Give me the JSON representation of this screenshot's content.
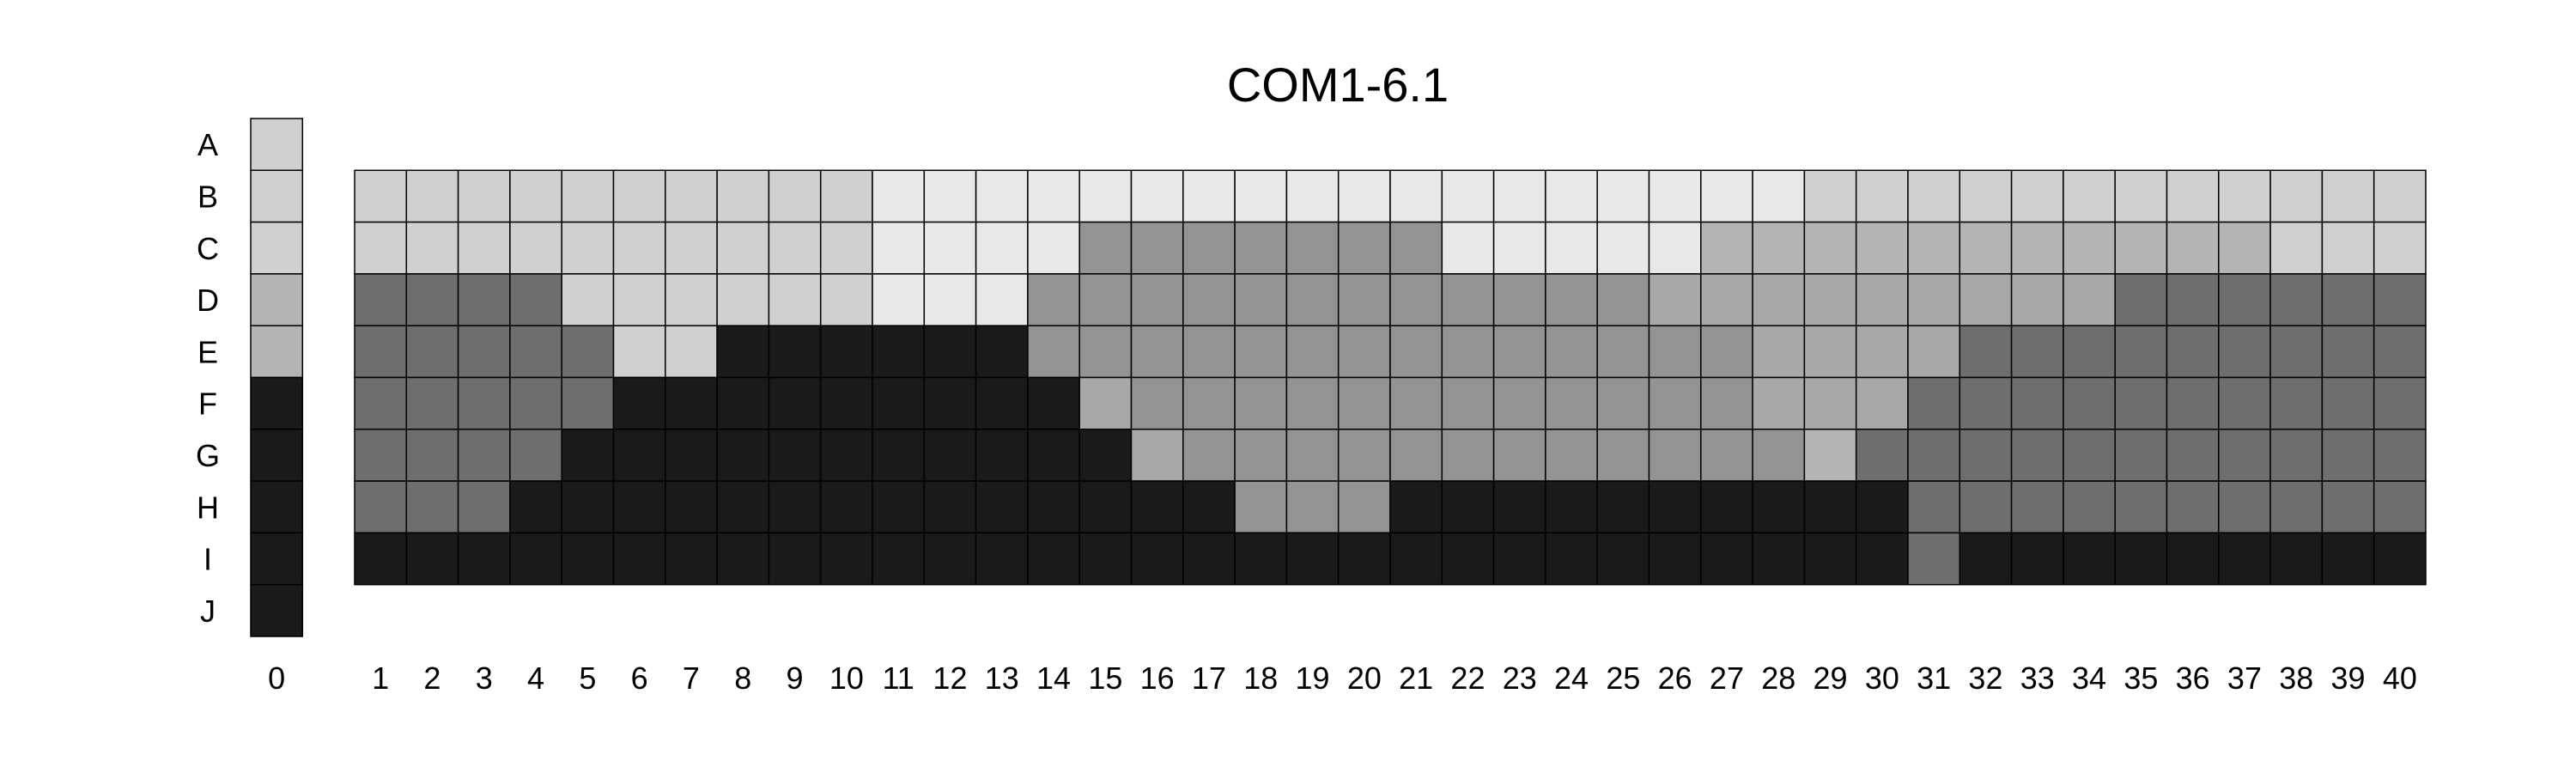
{
  "chart_data": {
    "type": "heatmap",
    "title": "COM1-6.1",
    "row_labels": [
      "A",
      "B",
      "C",
      "D",
      "E",
      "F",
      "G",
      "H",
      "I",
      "J"
    ],
    "col_labels": [
      "1",
      "2",
      "3",
      "4",
      "5",
      "6",
      "7",
      "8",
      "9",
      "10",
      "11",
      "12",
      "13",
      "14",
      "15",
      "16",
      "17",
      "18",
      "19",
      "20",
      "21",
      "22",
      "23",
      "24",
      "25",
      "26",
      "27",
      "28",
      "29",
      "30",
      "31",
      "32",
      "33",
      "34",
      "35",
      "36",
      "37",
      "38",
      "39",
      "40"
    ],
    "reference_col_label": "0",
    "reference_levels": [
      1,
      1,
      1,
      2,
      2,
      6,
      6,
      6,
      6,
      6
    ],
    "grid_rows": [
      "B",
      "C",
      "D",
      "E",
      "F",
      "G",
      "H",
      "I"
    ],
    "levels": [
      [
        1,
        1,
        1,
        1,
        1,
        1,
        1,
        1,
        1,
        1,
        0,
        0,
        0,
        0,
        0,
        0,
        0,
        0,
        0,
        0,
        0,
        0,
        0,
        0,
        0,
        0,
        0,
        0,
        1,
        1,
        1,
        1,
        1,
        1,
        1,
        1,
        1,
        1,
        1,
        1
      ],
      [
        1,
        1,
        1,
        1,
        1,
        1,
        1,
        1,
        1,
        1,
        0,
        0,
        0,
        0,
        4,
        4,
        4,
        4,
        4,
        4,
        4,
        0,
        0,
        0,
        0,
        0,
        2,
        2,
        2,
        2,
        2,
        2,
        2,
        2,
        2,
        2,
        2,
        1,
        1,
        1
      ],
      [
        5,
        5,
        5,
        5,
        1,
        1,
        1,
        1,
        1,
        1,
        0,
        0,
        0,
        4,
        4,
        4,
        4,
        4,
        4,
        4,
        4,
        4,
        4,
        4,
        4,
        3,
        3,
        3,
        3,
        3,
        3,
        3,
        3,
        3,
        5,
        5,
        5,
        5,
        5,
        5
      ],
      [
        5,
        5,
        5,
        5,
        5,
        1,
        1,
        6,
        6,
        6,
        6,
        6,
        6,
        4,
        4,
        4,
        4,
        4,
        4,
        4,
        4,
        4,
        4,
        4,
        4,
        4,
        4,
        3,
        3,
        3,
        3,
        5,
        5,
        5,
        5,
        5,
        5,
        5,
        5,
        5
      ],
      [
        5,
        5,
        5,
        5,
        5,
        6,
        6,
        6,
        6,
        6,
        6,
        6,
        6,
        6,
        3,
        4,
        4,
        4,
        4,
        4,
        4,
        4,
        4,
        4,
        4,
        4,
        4,
        3,
        3,
        3,
        5,
        5,
        5,
        5,
        5,
        5,
        5,
        5,
        5,
        5
      ],
      [
        5,
        5,
        5,
        5,
        6,
        6,
        6,
        6,
        6,
        6,
        6,
        6,
        6,
        6,
        6,
        3,
        4,
        4,
        4,
        4,
        4,
        4,
        4,
        4,
        4,
        4,
        4,
        4,
        2,
        5,
        5,
        5,
        5,
        5,
        5,
        5,
        5,
        5,
        5,
        5
      ],
      [
        5,
        5,
        5,
        6,
        6,
        6,
        6,
        6,
        6,
        6,
        6,
        6,
        6,
        6,
        6,
        6,
        6,
        4,
        4,
        4,
        6,
        6,
        6,
        6,
        6,
        6,
        6,
        6,
        6,
        6,
        5,
        5,
        5,
        5,
        5,
        5,
        5,
        5,
        5,
        5
      ],
      [
        6,
        6,
        6,
        6,
        6,
        6,
        6,
        6,
        6,
        6,
        6,
        6,
        6,
        6,
        6,
        6,
        6,
        6,
        6,
        6,
        6,
        6,
        6,
        6,
        6,
        6,
        6,
        6,
        6,
        6,
        5,
        6,
        6,
        6,
        6,
        6,
        6,
        6,
        6,
        6
      ]
    ],
    "palette": [
      "#e8e8e8",
      "#d0d0d0",
      "#b4b4b4",
      "#a8a8a8",
      "#939393",
      "#6e6e6e",
      "#1a1a1a"
    ]
  }
}
